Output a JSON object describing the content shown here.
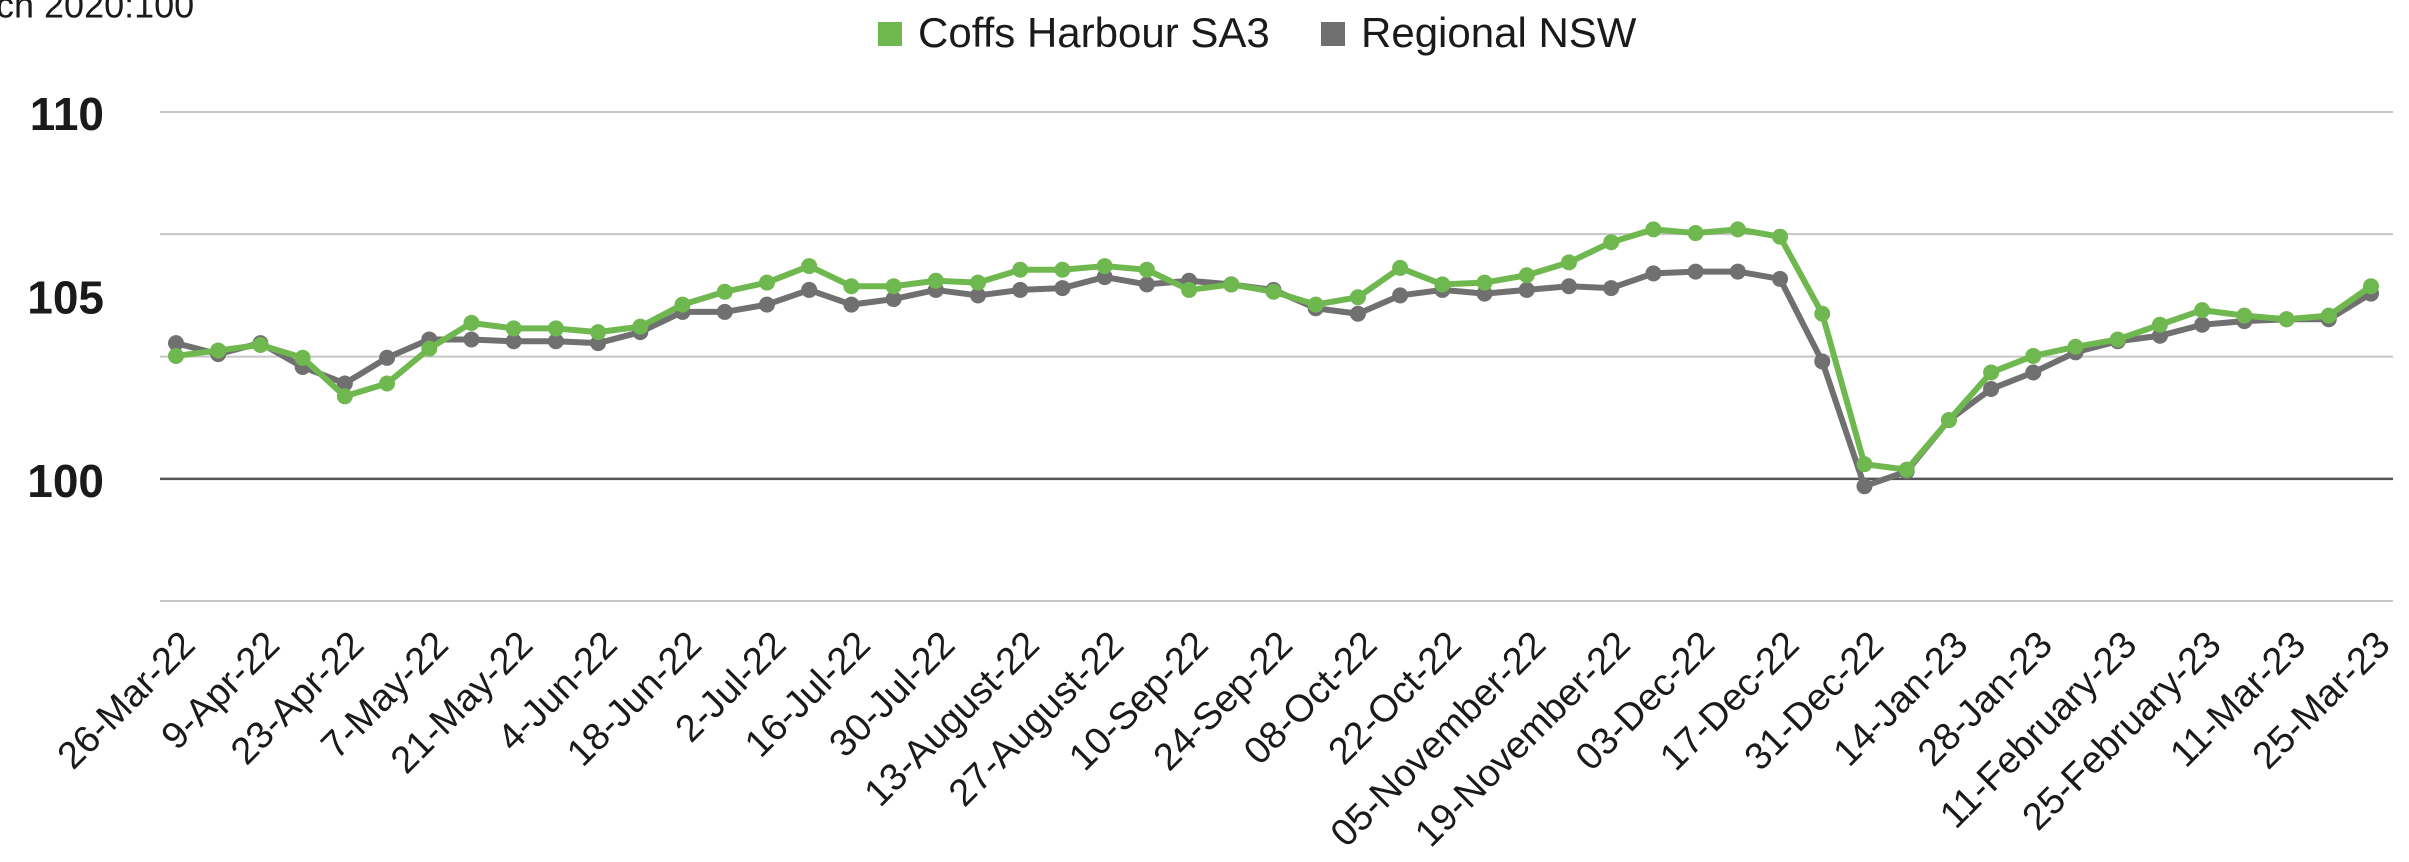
{
  "chart_data": {
    "type": "line",
    "y_axis_label": "ch 2020:100",
    "categories": [
      "26-Mar-22",
      null,
      "9-Apr-22",
      null,
      "23-Apr-22",
      null,
      "7-May-22",
      null,
      "21-May-22",
      null,
      "4-Jun-22",
      null,
      "18-Jun-22",
      null,
      "2-Jul-22",
      null,
      "16-Jul-22",
      null,
      "30-Jul-22",
      null,
      "13-August-22",
      null,
      "27-August-22",
      null,
      "10-Sep-22",
      null,
      "24-Sep-22",
      null,
      "08-Oct-22",
      null,
      "22-Oct-22",
      null,
      "05-November-22",
      null,
      "19-November-22",
      null,
      "03-Dec-22",
      null,
      "17-Dec-22",
      null,
      "31-Dec-22",
      null,
      "14-Jan-23",
      null,
      "28-Jan-23",
      null,
      "11-February-23",
      null,
      "25-February-23",
      null,
      "11-Mar-23",
      null,
      "25-Mar-23"
    ],
    "series": [
      {
        "name": "Coffs Harbour SA3",
        "color": "#6fb84f",
        "values": [
          103.35,
          103.5,
          103.65,
          103.3,
          102.25,
          102.6,
          103.55,
          104.25,
          104.1,
          104.1,
          104.0,
          104.15,
          104.75,
          105.1,
          105.35,
          105.8,
          105.25,
          105.25,
          105.4,
          105.35,
          105.7,
          105.7,
          105.8,
          105.7,
          105.15,
          105.3,
          105.1,
          104.75,
          104.95,
          105.75,
          105.3,
          105.35,
          105.55,
          105.9,
          106.45,
          106.8,
          106.7,
          106.8,
          106.6,
          104.5,
          100.4,
          100.25,
          101.6,
          102.9,
          103.35,
          103.6,
          103.8,
          104.2,
          104.6,
          104.45,
          104.35,
          104.45,
          105.25
        ]
      },
      {
        "name": "Regional NSW",
        "color": "#707070",
        "values": [
          103.7,
          103.4,
          103.7,
          103.05,
          102.6,
          103.3,
          103.8,
          103.8,
          103.75,
          103.75,
          103.7,
          104.0,
          104.55,
          104.55,
          104.75,
          105.15,
          104.75,
          104.9,
          105.15,
          105.0,
          105.15,
          105.2,
          105.5,
          105.3,
          105.4,
          105.3,
          105.15,
          104.65,
          104.5,
          105.0,
          105.15,
          105.05,
          105.15,
          105.25,
          105.2,
          105.6,
          105.65,
          105.65,
          105.45,
          103.2,
          99.8,
          100.2,
          101.6,
          102.45,
          102.9,
          103.45,
          103.75,
          103.9,
          104.2,
          104.3,
          104.35,
          104.35,
          105.05
        ]
      }
    ],
    "ylim": [
      96.67,
      110
    ],
    "yticks": [
      100,
      105,
      110
    ],
    "ygrid": [
      96.67,
      100,
      103.33,
      106.67,
      110
    ],
    "baseline": 100,
    "legend": "top"
  }
}
